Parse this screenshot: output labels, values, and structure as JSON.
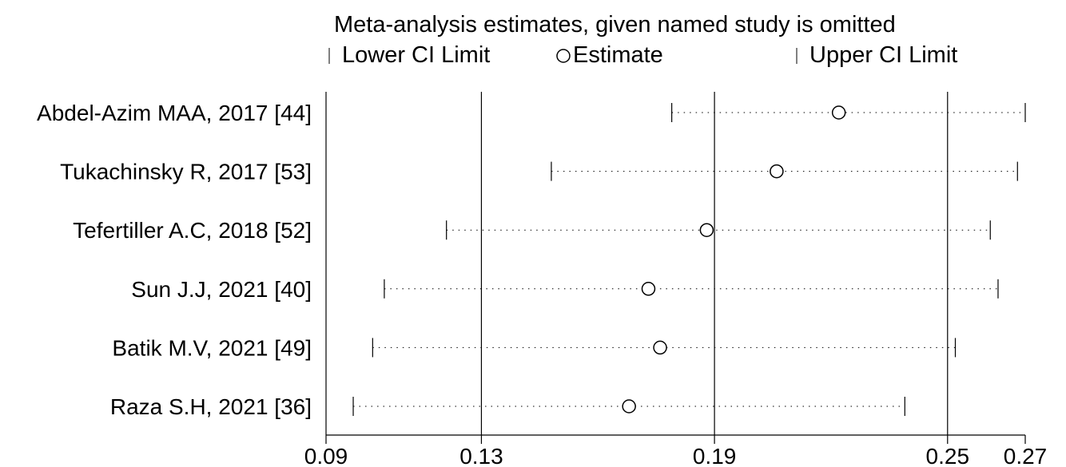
{
  "chart_data": {
    "type": "forest",
    "title": "Meta-analysis estimates, given named study is omitted",
    "legend": {
      "lower": "Lower CI Limit",
      "estimate": "Estimate",
      "upper": "Upper CI Limit",
      "placement": "top"
    },
    "xlim": [
      0.09,
      0.27
    ],
    "xticks": [
      {
        "value": 0.09,
        "label": "0.09"
      },
      {
        "value": 0.13,
        "label": "0.13"
      },
      {
        "value": 0.19,
        "label": "0.19"
      },
      {
        "value": 0.25,
        "label": "0.25"
      },
      {
        "value": 0.27,
        "label": "0.27"
      }
    ],
    "reference_lines": [
      0.13,
      0.19,
      0.25
    ],
    "studies": [
      {
        "label": "Abdel-Azim MAA, 2017  [44]",
        "lower": 0.179,
        "estimate": 0.222,
        "upper": 0.27
      },
      {
        "label": "Tukachinsky R, 2017 [53]",
        "lower": 0.148,
        "estimate": 0.206,
        "upper": 0.268
      },
      {
        "label": "Tefertiller A.C, 2018 [52]",
        "lower": 0.121,
        "estimate": 0.188,
        "upper": 0.261
      },
      {
        "label": "Sun J.J, 2021 [40]",
        "lower": 0.105,
        "estimate": 0.173,
        "upper": 0.263
      },
      {
        "label": "Batik M.V, 2021 [49]",
        "lower": 0.102,
        "estimate": 0.176,
        "upper": 0.252
      },
      {
        "label": "Raza S.H, 2021 [36]",
        "lower": 0.097,
        "estimate": 0.168,
        "upper": 0.239
      }
    ]
  }
}
